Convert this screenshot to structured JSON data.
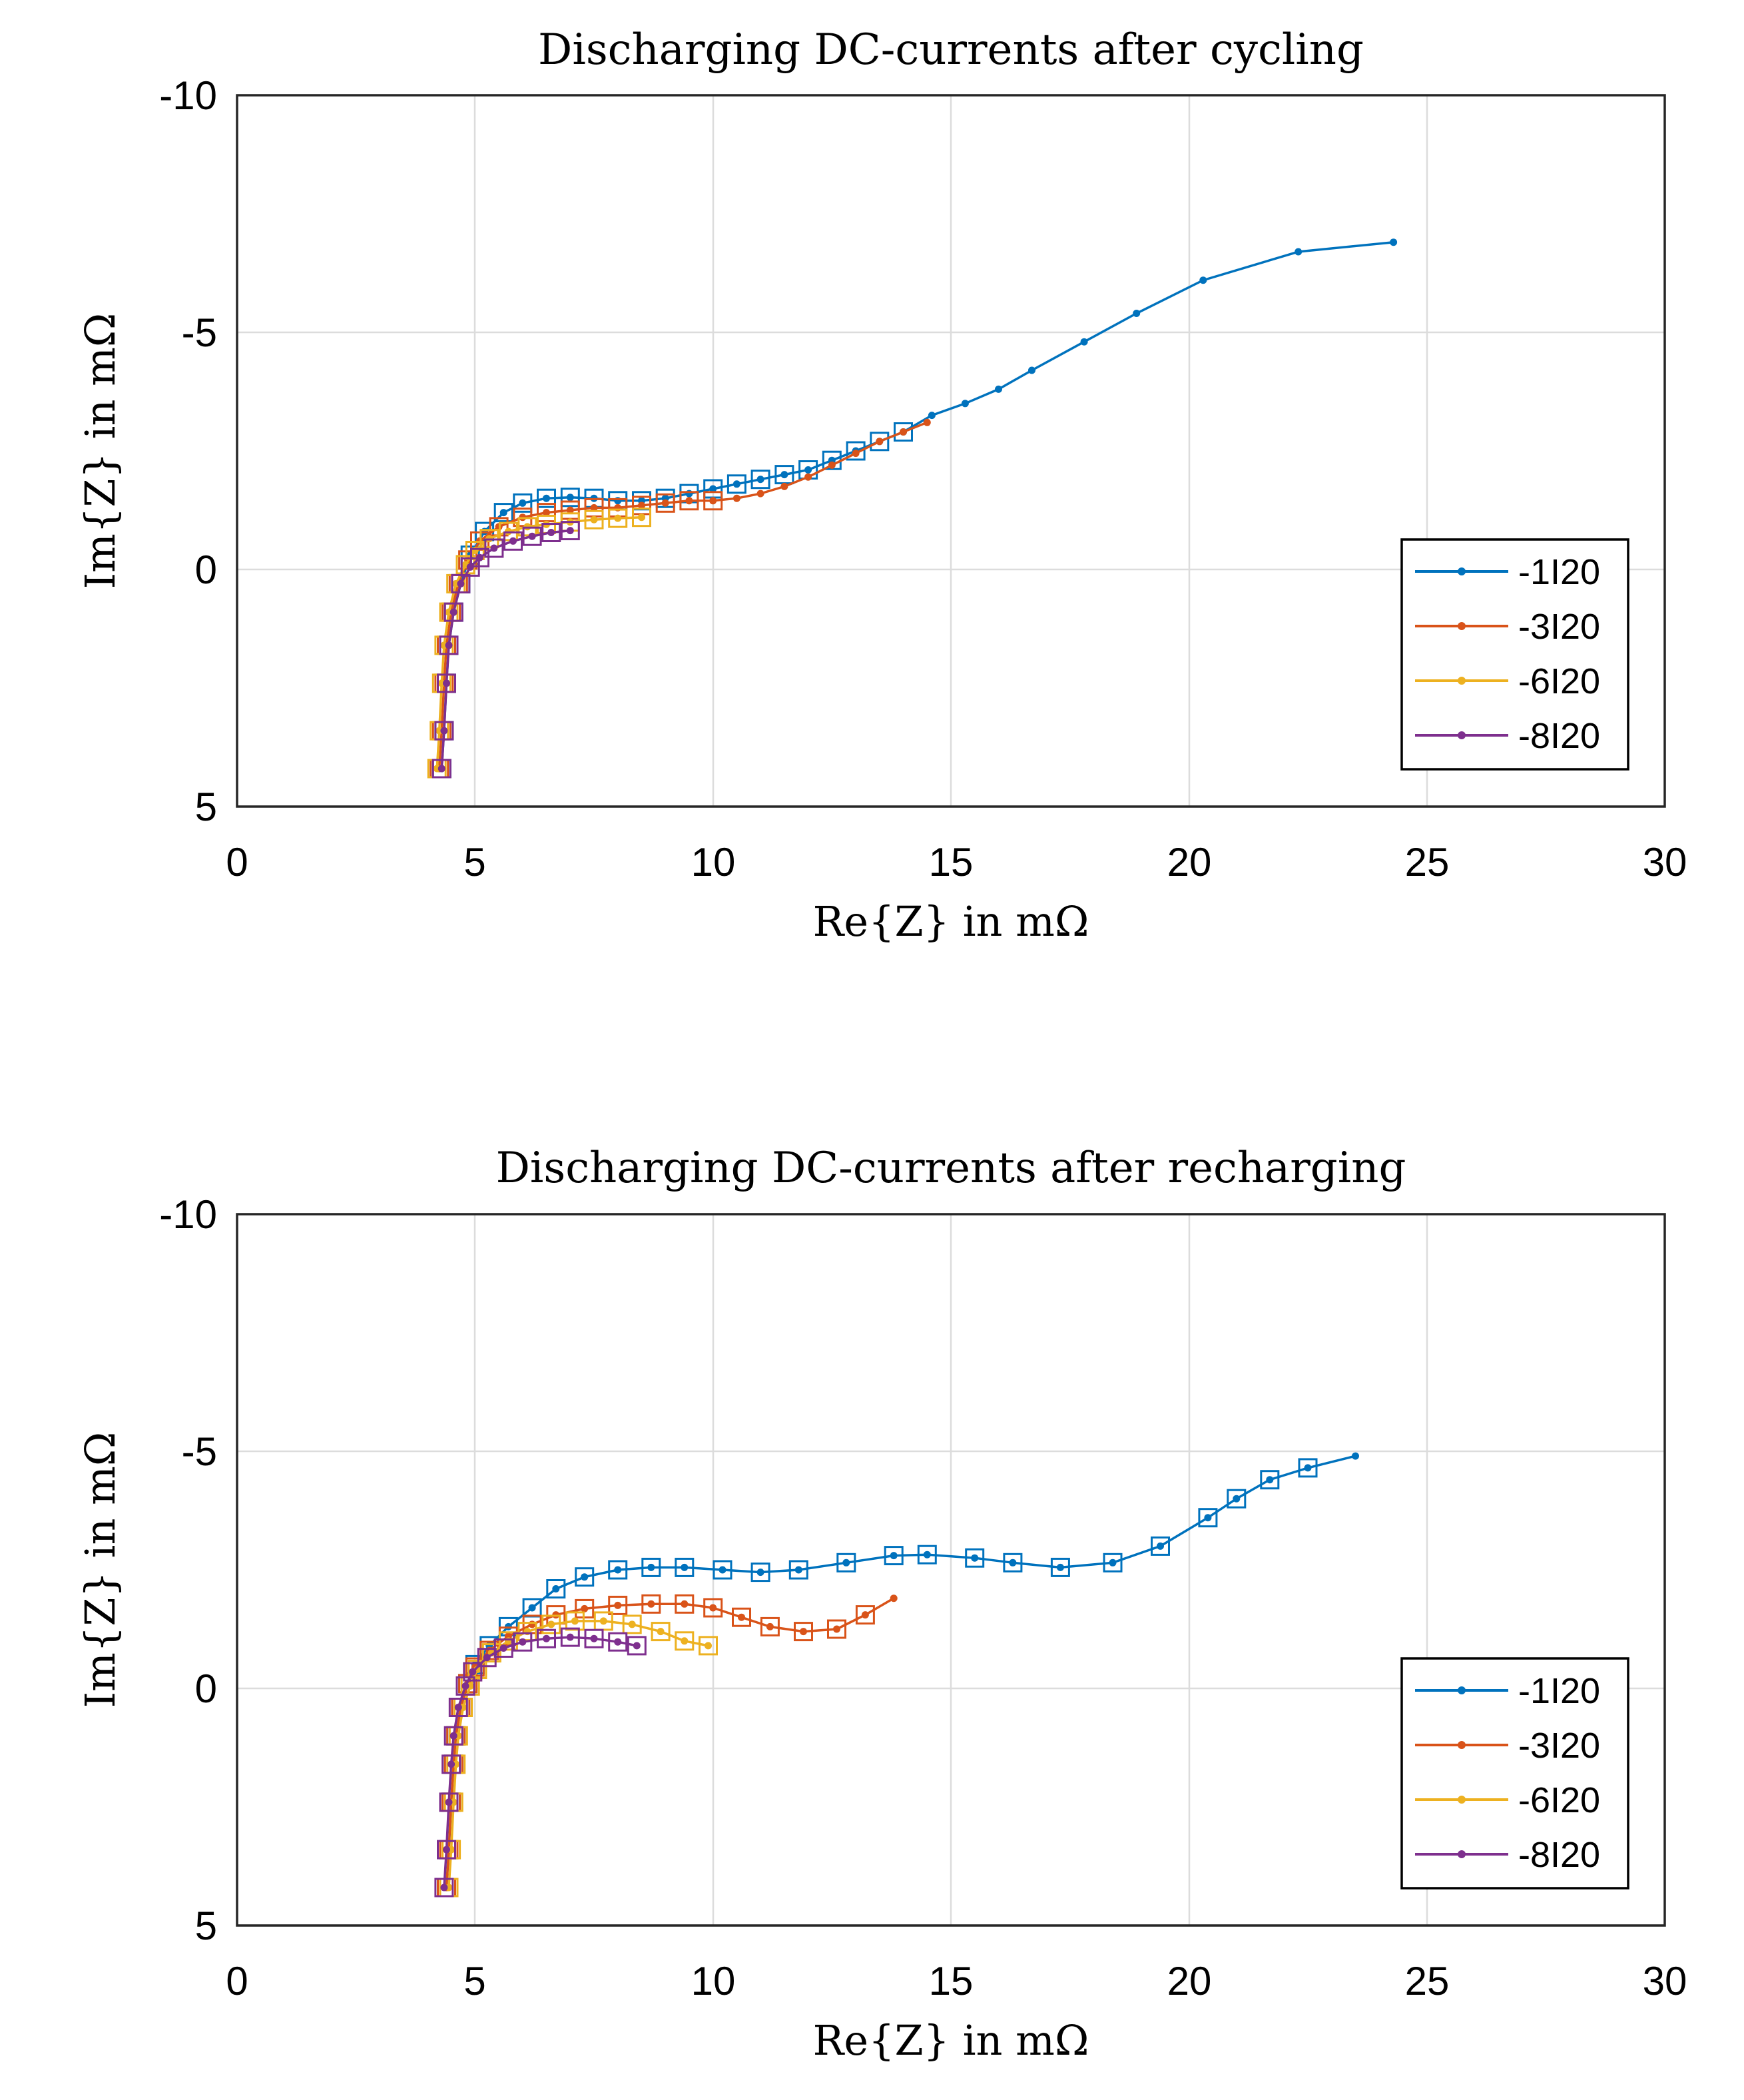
{
  "colors": {
    "s1": "#0072BD",
    "s2": "#D95319",
    "s3": "#EDB120",
    "s4": "#7E2F8E"
  },
  "chart_data": [
    {
      "type": "line",
      "title": "Discharging DC-currents after cycling",
      "xlabel": "Re{Z} in mΩ",
      "ylabel": "Im{Z} in mΩ",
      "xlim": [
        0,
        30
      ],
      "ylim": [
        5,
        -10
      ],
      "y_axis_reversed": true,
      "grid": true,
      "legend_position": "lower-right",
      "x_ticks": [
        "0",
        "5",
        "10",
        "15",
        "20",
        "25",
        "30"
      ],
      "y_ticks": [
        "-10",
        "-5",
        "0",
        "5"
      ],
      "series": [
        {
          "name": "-1I20",
          "x": [
            4.3,
            4.35,
            4.4,
            4.45,
            4.55,
            4.7,
            4.9,
            5.2,
            5.6,
            6.0,
            6.5,
            7.0,
            7.5,
            8.0,
            8.5,
            9.0,
            9.5,
            10.0,
            10.5,
            11.0,
            11.5,
            12.0,
            12.5,
            13.0,
            13.5,
            14.0,
            14.6,
            15.3,
            16.0,
            16.7,
            17.8,
            18.9,
            20.3,
            22.3,
            24.3
          ],
          "y": [
            4.2,
            3.4,
            2.4,
            1.6,
            0.9,
            0.3,
            -0.3,
            -0.8,
            -1.2,
            -1.4,
            -1.5,
            -1.52,
            -1.5,
            -1.45,
            -1.45,
            -1.5,
            -1.6,
            -1.7,
            -1.8,
            -1.9,
            -2.0,
            -2.1,
            -2.3,
            -2.5,
            -2.7,
            -2.9,
            -3.25,
            -3.5,
            -3.8,
            -4.2,
            -4.8,
            -5.4,
            -6.1,
            -6.7,
            -6.9
          ],
          "marker_squares_x_max": 14.0
        },
        {
          "name": "-3I20",
          "x": [
            4.25,
            4.3,
            4.35,
            4.4,
            4.5,
            4.65,
            4.85,
            5.1,
            5.5,
            6.0,
            6.5,
            7.0,
            7.5,
            8.0,
            8.5,
            9.0,
            9.5,
            10.0,
            10.5,
            11.0,
            11.5,
            12.0,
            12.5,
            13.0,
            13.5,
            14.0,
            14.5
          ],
          "y": [
            4.2,
            3.4,
            2.4,
            1.6,
            0.9,
            0.3,
            -0.2,
            -0.6,
            -0.9,
            -1.1,
            -1.2,
            -1.25,
            -1.3,
            -1.3,
            -1.35,
            -1.4,
            -1.45,
            -1.45,
            -1.5,
            -1.6,
            -1.75,
            -1.95,
            -2.2,
            -2.45,
            -2.7,
            -2.9,
            -3.1
          ],
          "marker_squares_x_max": 10.3
        },
        {
          "name": "-6I20",
          "x": [
            4.2,
            4.25,
            4.3,
            4.35,
            4.45,
            4.6,
            4.8,
            5.0,
            5.3,
            5.7,
            6.1,
            6.5,
            7.0,
            7.5,
            8.0,
            8.5
          ],
          "y": [
            4.2,
            3.4,
            2.4,
            1.6,
            0.9,
            0.3,
            -0.1,
            -0.4,
            -0.65,
            -0.8,
            -0.9,
            -0.95,
            -1.0,
            -1.05,
            -1.08,
            -1.1
          ],
          "marker_squares_x_max": 8.5
        },
        {
          "name": "-8I20",
          "x": [
            4.3,
            4.35,
            4.4,
            4.45,
            4.55,
            4.7,
            4.9,
            5.1,
            5.4,
            5.8,
            6.2,
            6.6,
            7.0
          ],
          "y": [
            4.2,
            3.4,
            2.4,
            1.6,
            0.9,
            0.3,
            -0.05,
            -0.25,
            -0.45,
            -0.6,
            -0.7,
            -0.78,
            -0.82
          ],
          "marker_squares_x_max": 7.0
        }
      ]
    },
    {
      "type": "line",
      "title": "Discharging DC-currents after recharging",
      "xlabel": "Re{Z} in mΩ",
      "ylabel": "Im{Z} in mΩ",
      "xlim": [
        0,
        30
      ],
      "ylim": [
        5,
        -10
      ],
      "y_axis_reversed": true,
      "grid": true,
      "legend_position": "lower-right",
      "x_ticks": [
        "0",
        "5",
        "10",
        "15",
        "20",
        "25",
        "30"
      ],
      "y_ticks": [
        "-10",
        "-5",
        "0",
        "5"
      ],
      "series": [
        {
          "name": "-1I20",
          "x": [
            4.4,
            4.45,
            4.5,
            4.55,
            4.6,
            4.7,
            4.85,
            5.0,
            5.3,
            5.7,
            6.2,
            6.7,
            7.3,
            8.0,
            8.7,
            9.4,
            10.2,
            11.0,
            11.8,
            12.8,
            13.8,
            14.5,
            15.5,
            16.3,
            17.3,
            18.4,
            19.4,
            20.4,
            21.0,
            21.7,
            22.5,
            23.5
          ],
          "y": [
            4.2,
            3.4,
            2.4,
            1.6,
            1.0,
            0.4,
            -0.1,
            -0.5,
            -0.9,
            -1.3,
            -1.7,
            -2.1,
            -2.35,
            -2.5,
            -2.55,
            -2.55,
            -2.5,
            -2.45,
            -2.5,
            -2.65,
            -2.8,
            -2.82,
            -2.75,
            -2.65,
            -2.55,
            -2.65,
            -3.0,
            -3.6,
            -4.0,
            -4.4,
            -4.65,
            -4.9
          ],
          "marker_squares_x_max": 22.5
        },
        {
          "name": "-3I20",
          "x": [
            4.4,
            4.45,
            4.5,
            4.55,
            4.6,
            4.7,
            4.85,
            5.0,
            5.3,
            5.7,
            6.2,
            6.7,
            7.3,
            8.0,
            8.7,
            9.4,
            10.0,
            10.6,
            11.2,
            11.9,
            12.6,
            13.2,
            13.8
          ],
          "y": [
            4.2,
            3.4,
            2.4,
            1.6,
            1.0,
            0.4,
            -0.1,
            -0.45,
            -0.8,
            -1.1,
            -1.35,
            -1.55,
            -1.68,
            -1.75,
            -1.78,
            -1.78,
            -1.7,
            -1.5,
            -1.3,
            -1.2,
            -1.25,
            -1.55,
            -1.9
          ],
          "marker_squares_x_max": 13.4
        },
        {
          "name": "-6I20",
          "x": [
            4.45,
            4.5,
            4.55,
            4.6,
            4.65,
            4.75,
            4.9,
            5.05,
            5.35,
            5.7,
            6.1,
            6.6,
            7.1,
            7.7,
            8.3,
            8.9,
            9.4,
            9.9
          ],
          "y": [
            4.2,
            3.4,
            2.4,
            1.6,
            1.0,
            0.4,
            -0.05,
            -0.4,
            -0.75,
            -1.0,
            -1.2,
            -1.35,
            -1.42,
            -1.42,
            -1.35,
            -1.2,
            -1.0,
            -0.9
          ],
          "marker_squares_x_max": 9.9
        },
        {
          "name": "-8I20",
          "x": [
            4.35,
            4.4,
            4.45,
            4.5,
            4.55,
            4.65,
            4.8,
            4.95,
            5.25,
            5.6,
            6.0,
            6.5,
            7.0,
            7.5,
            8.0,
            8.4
          ],
          "y": [
            4.2,
            3.4,
            2.4,
            1.6,
            1.0,
            0.4,
            -0.05,
            -0.35,
            -0.65,
            -0.85,
            -0.98,
            -1.05,
            -1.08,
            -1.05,
            -0.98,
            -0.9
          ],
          "marker_squares_x_max": 8.4
        }
      ]
    }
  ]
}
